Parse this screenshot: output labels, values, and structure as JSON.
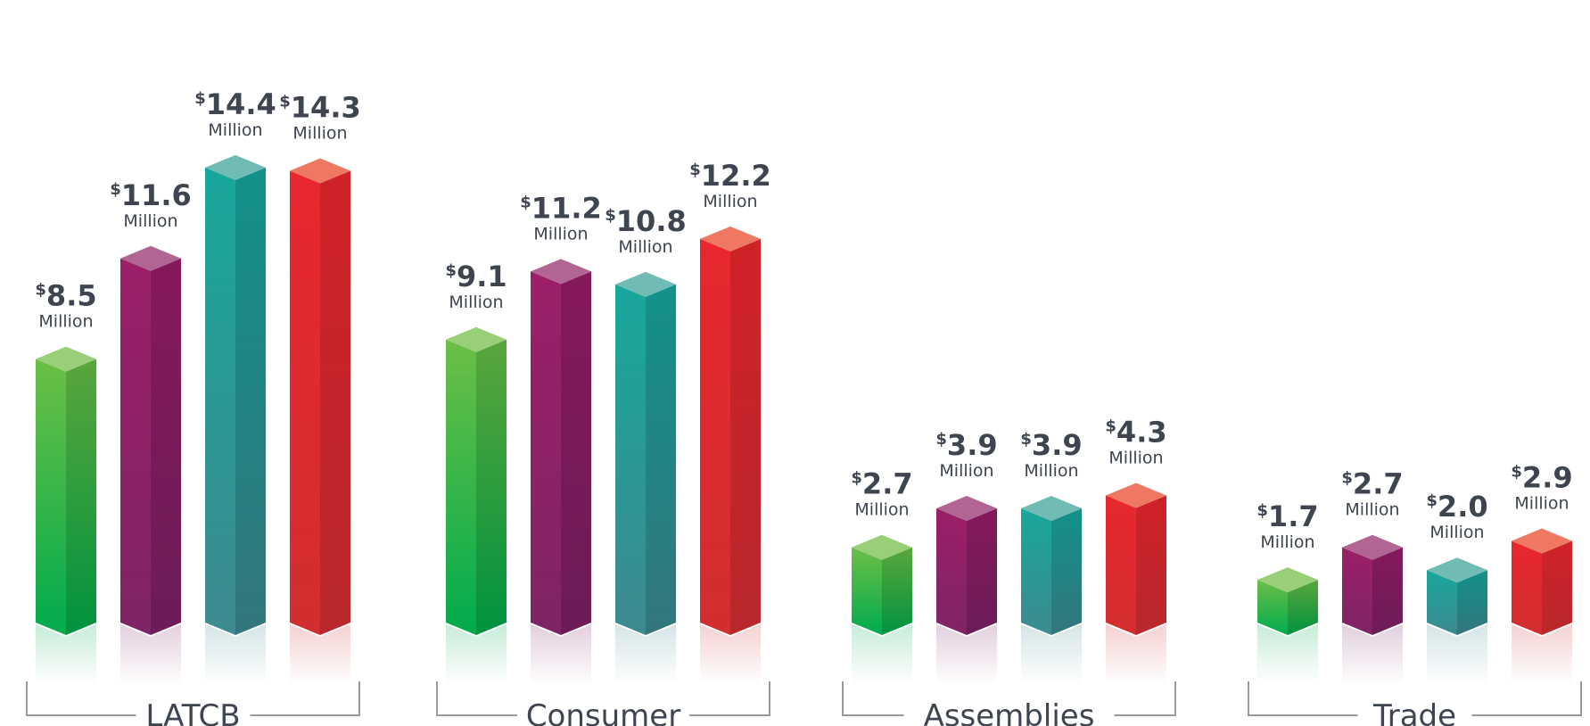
{
  "chart_data": {
    "type": "bar",
    "groups": [
      {
        "label": "LATCB",
        "bars": [
          {
            "dollar": "$",
            "value": "8.5",
            "unit": "Million",
            "color_key": "green"
          },
          {
            "dollar": "$",
            "value": "11.6",
            "unit": "Million",
            "color_key": "purple"
          },
          {
            "dollar": "$",
            "value": "14.4",
            "unit": "Million",
            "color_key": "teal"
          },
          {
            "dollar": "$",
            "value": "14.3",
            "unit": "Million",
            "color_key": "red"
          }
        ]
      },
      {
        "label": "Consumer",
        "bars": [
          {
            "dollar": "$",
            "value": "9.1",
            "unit": "Million",
            "color_key": "green"
          },
          {
            "dollar": "$",
            "value": "11.2",
            "unit": "Million",
            "color_key": "purple"
          },
          {
            "dollar": "$",
            "value": "10.8",
            "unit": "Million",
            "color_key": "teal"
          },
          {
            "dollar": "$",
            "value": "12.2",
            "unit": "Million",
            "color_key": "red"
          }
        ]
      },
      {
        "label": "Assemblies",
        "bars": [
          {
            "dollar": "$",
            "value": "2.7",
            "unit": "Million",
            "color_key": "green"
          },
          {
            "dollar": "$",
            "value": "3.9",
            "unit": "Million",
            "color_key": "purple"
          },
          {
            "dollar": "$",
            "value": "3.9",
            "unit": "Million",
            "color_key": "teal"
          },
          {
            "dollar": "$",
            "value": "4.3",
            "unit": "Million",
            "color_key": "red"
          }
        ]
      },
      {
        "label": "Trade",
        "bars": [
          {
            "dollar": "$",
            "value": "1.7",
            "unit": "Million",
            "color_key": "green"
          },
          {
            "dollar": "$",
            "value": "2.7",
            "unit": "Million",
            "color_key": "purple"
          },
          {
            "dollar": "$",
            "value": "2.0",
            "unit": "Million",
            "color_key": "teal"
          },
          {
            "dollar": "$",
            "value": "2.9",
            "unit": "Million",
            "color_key": "red"
          }
        ]
      }
    ],
    "ylim": [
      0,
      16
    ]
  },
  "colors": {
    "green": {
      "front_top": "#6cbf45",
      "front_bottom": "#00ab4e",
      "side_top": "#5aa63c",
      "side_bottom": "#00933f",
      "cap": "#98cf78"
    },
    "purple": {
      "front_top": "#9c1f68",
      "front_bottom": "#7e2466",
      "side_top": "#85195a",
      "side_bottom": "#6c1c58",
      "cap": "#b06592"
    },
    "teal": {
      "front_top": "#18a79c",
      "front_bottom": "#3d8a8f",
      "side_top": "#12918a",
      "side_bottom": "#33767c",
      "cap": "#70bbb4"
    },
    "red": {
      "front_top": "#e8272f",
      "front_bottom": "#d12e30",
      "side_top": "#cf2229",
      "side_bottom": "#b8282a",
      "cap": "#ef7862"
    },
    "text": "#3e4550",
    "bracket": "#9a9a9a"
  }
}
